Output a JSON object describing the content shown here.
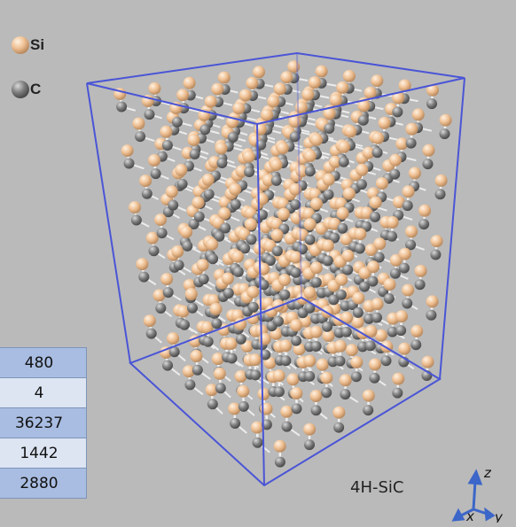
{
  "legend": {
    "items": [
      {
        "label": "Si",
        "color": "#f0c49a"
      },
      {
        "label": "C",
        "color": "#8a8a8a"
      }
    ]
  },
  "caption": "4H-SiC",
  "axes": {
    "x": "x",
    "y": "y",
    "z": "z"
  },
  "stats_table": {
    "rows": [
      "480",
      "4",
      "36237",
      "1442",
      "2880"
    ]
  },
  "colors": {
    "background": "#bababa",
    "cell_edge": "#4a55d6",
    "bond": "#f2f2f2",
    "si_atom": "#f0c49a",
    "c_atom": "#8a8a8a"
  }
}
